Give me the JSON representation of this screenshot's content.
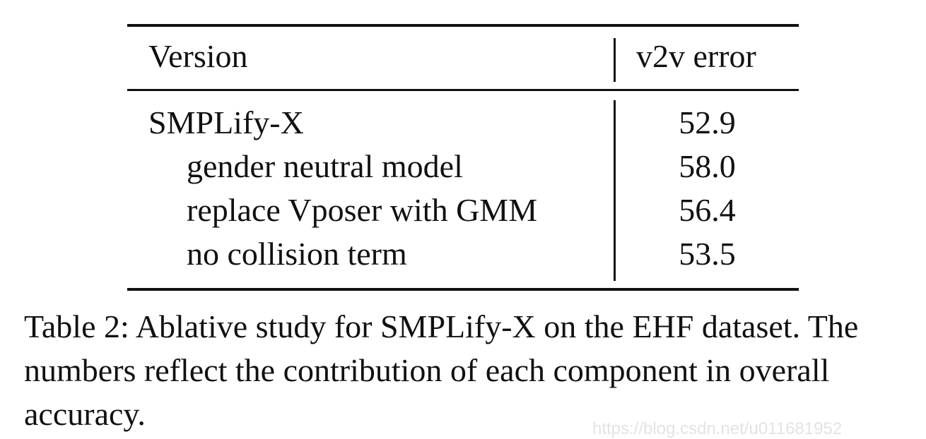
{
  "table": {
    "headers": [
      "Version",
      "v2v error"
    ],
    "rows": [
      {
        "version": "SMPLify-X",
        "error": "52.9"
      },
      {
        "version": "gender neutral model",
        "error": "58.0"
      },
      {
        "version": "replace Vposer with GMM",
        "error": "56.4"
      },
      {
        "version": "no collision term",
        "error": "53.5"
      }
    ]
  },
  "caption": {
    "label": "Table 2:",
    "text": "Ablative study for SMPLify-X on the EHF dataset. The numbers reflect the contribution of each component in overall accuracy."
  },
  "watermark": "https://blog.csdn.net/u011681952"
}
